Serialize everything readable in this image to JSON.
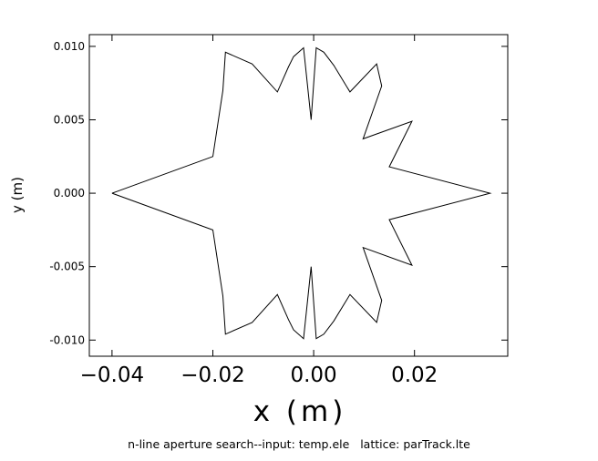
{
  "chart_data": {
    "type": "line",
    "title": "",
    "xlabel": "x (m)",
    "ylabel": "y (m)",
    "caption": "n-line aperture search--input: temp.ele   lattice: parTrack.lte",
    "xlim": [
      -0.0445,
      0.0385
    ],
    "ylim": [
      -0.0111,
      0.0108
    ],
    "x_ticks": [
      {
        "value": -0.04,
        "label": "−0.04"
      },
      {
        "value": -0.02,
        "label": "−0.02"
      },
      {
        "value": 0.0,
        "label": "0.00"
      },
      {
        "value": 0.02,
        "label": "0.02"
      }
    ],
    "y_ticks": [
      {
        "value": 0.01,
        "label": "0.010"
      },
      {
        "value": 0.005,
        "label": "0.005"
      },
      {
        "value": 0.0,
        "label": "0.000"
      },
      {
        "value": -0.005,
        "label": "-0.005"
      },
      {
        "value": -0.01,
        "label": "-0.010"
      }
    ],
    "grid": false,
    "series": [
      {
        "color": "#000000",
        "x": [
          -0.04,
          -0.02,
          -0.018,
          -0.0175,
          -0.0122,
          -0.0072,
          -0.005,
          -0.004,
          -0.002,
          -0.0005,
          0.0005,
          0.002,
          0.004,
          0.0072,
          0.0125,
          0.0135,
          0.0098,
          0.0195,
          0.015,
          0.035,
          0.015,
          0.0195,
          0.0098,
          0.0135,
          0.0125,
          0.0072,
          0.004,
          0.002,
          0.0005,
          -0.0005,
          -0.002,
          -0.004,
          -0.005,
          -0.0072,
          -0.0122,
          -0.0175,
          -0.018,
          -0.02,
          -0.04
        ],
        "y": [
          0.0,
          0.0025,
          0.007,
          0.0096,
          0.0088,
          0.0069,
          0.0086,
          0.0093,
          0.0099,
          0.005,
          0.0099,
          0.0096,
          0.0087,
          0.0069,
          0.0088,
          0.0073,
          0.0037,
          0.0049,
          0.0018,
          0.0,
          -0.0018,
          -0.0049,
          -0.0037,
          -0.0073,
          -0.0088,
          -0.0069,
          -0.0087,
          -0.0096,
          -0.0099,
          -0.005,
          -0.0099,
          -0.0093,
          -0.0086,
          -0.0069,
          -0.0088,
          -0.0096,
          -0.007,
          -0.0025,
          0.0
        ]
      }
    ]
  }
}
